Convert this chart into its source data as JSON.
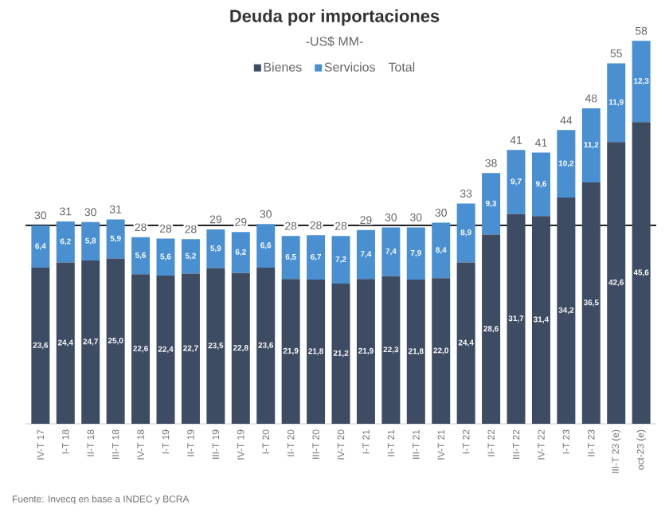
{
  "chart_data": {
    "type": "bar",
    "stacked": true,
    "title": "Deuda por importaciones",
    "subtitle": "-US$ MM-",
    "categories": [
      "IV-T 17",
      "I-T 18",
      "II-T 18",
      "III-T 18",
      "IV-T 18",
      "I-T 19",
      "II-T 19",
      "III-T 19",
      "IV-T 19",
      "I-T 20",
      "II-T 20",
      "III-T 20",
      "IV-T 20",
      "I-T 21",
      "II-T 21",
      "III-T 21",
      "IV-T 21",
      "I-T 22",
      "II-T 22",
      "III-T 22",
      "IV-T 22",
      "I-T 23",
      "II-T 23",
      "III-T 23 (e)",
      "oct-23 (e)"
    ],
    "series": [
      {
        "name": "Bienes",
        "color": "#3d4b63",
        "values": [
          23.6,
          24.4,
          24.7,
          25.0,
          22.6,
          22.4,
          22.7,
          23.5,
          22.8,
          23.6,
          21.9,
          21.8,
          21.2,
          21.9,
          22.3,
          21.8,
          22.0,
          24.4,
          28.6,
          31.7,
          31.4,
          34.2,
          36.5,
          42.6,
          45.6
        ],
        "value_labels": [
          "23,6",
          "24,4",
          "24,7",
          "25,0",
          "22,6",
          "22,4",
          "22,7",
          "23,5",
          "22,8",
          "23,6",
          "21,9",
          "21,8",
          "21,2",
          "21,9",
          "22,3",
          "21,8",
          "22,0",
          "24,4",
          "28,6",
          "31,7",
          "31,4",
          "34,2",
          "36,5",
          "42,6",
          "45,6"
        ]
      },
      {
        "name": "Servicios",
        "color": "#4a8fd0",
        "values": [
          6.4,
          6.2,
          5.8,
          5.9,
          5.6,
          5.6,
          5.2,
          5.9,
          6.2,
          6.6,
          6.5,
          6.7,
          7.2,
          7.4,
          7.4,
          7.9,
          8.4,
          8.9,
          9.3,
          9.7,
          9.6,
          10.2,
          11.2,
          11.9,
          12.3
        ],
        "value_labels": [
          "6,4",
          "6,2",
          "5,8",
          "5,9",
          "5,6",
          "5,6",
          "5,2",
          "5,9",
          "6,2",
          "6,6",
          "6,5",
          "6,7",
          "7,2",
          "7,4",
          "7,4",
          "7,9",
          "8,4",
          "8,9",
          "9,3",
          "9,7",
          "9,6",
          "10,2",
          "11,2",
          "11,9",
          "12,3"
        ]
      }
    ],
    "totals": [
      "30",
      "31",
      "30",
      "31",
      "28",
      "28",
      "28",
      "29",
      "29",
      "30",
      "28",
      "28",
      "28",
      "29",
      "30",
      "30",
      "30",
      "33",
      "38",
      "41",
      "41",
      "44",
      "48",
      "55",
      "58"
    ],
    "tick_labels": "x",
    "legend": "top",
    "ref_lines": [
      {
        "axis": "y",
        "value": 30,
        "color": "#000000"
      }
    ],
    "annotations": [
      "Total",
      "Fuente: Invecq en base a INDEC y BCRA"
    ]
  }
}
